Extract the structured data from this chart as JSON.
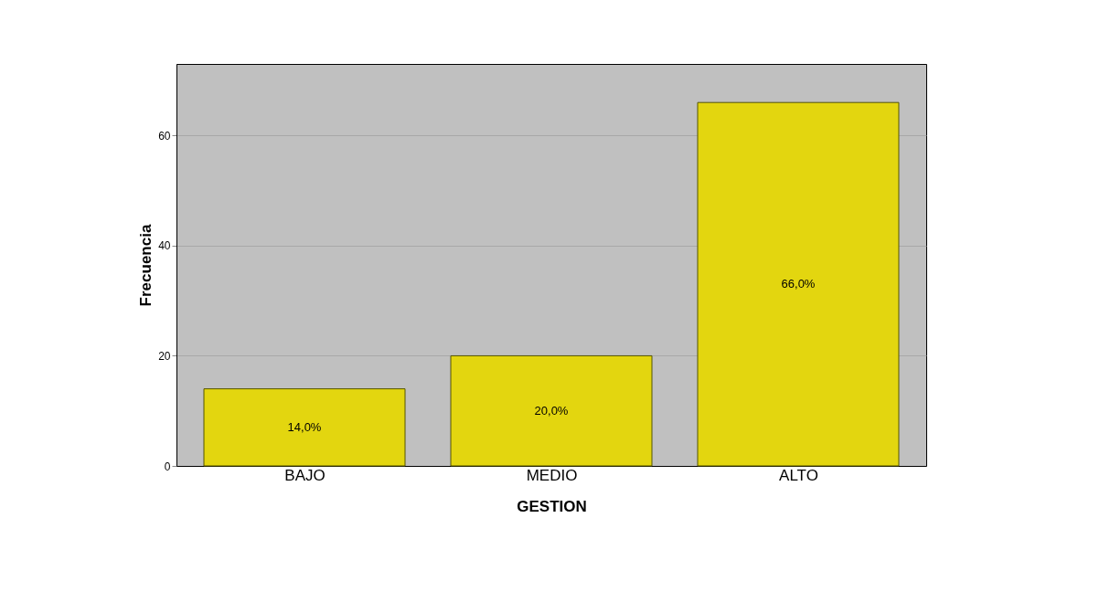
{
  "chart_data": {
    "type": "bar",
    "xlabel": "GESTION",
    "ylabel": "Frecuencia",
    "categories": [
      "BAJO",
      "MEDIO",
      "ALTO"
    ],
    "values": [
      14,
      20,
      66
    ],
    "color": "#e3d60f",
    "value_labels": [
      "14,0%",
      "20,0%",
      "66,0%"
    ],
    "ylim": [
      0,
      73
    ],
    "yticks": [
      0,
      20,
      40,
      60
    ],
    "grid": "y"
  }
}
